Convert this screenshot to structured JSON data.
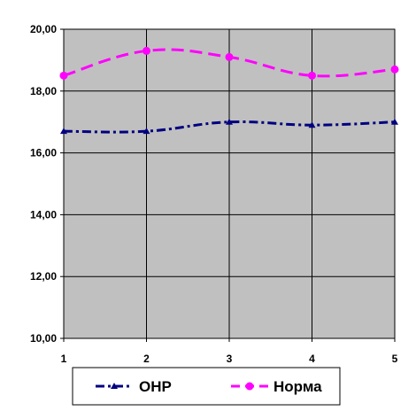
{
  "chart_data": {
    "type": "line",
    "x": [
      1,
      2,
      3,
      4,
      5
    ],
    "x_tick_labels": [
      "1",
      "2",
      "3",
      "4",
      "5"
    ],
    "ylim": [
      10,
      20
    ],
    "y_tick_values": [
      10,
      12,
      14,
      16,
      18,
      20
    ],
    "y_tick_labels": [
      "10,00",
      "12,00",
      "14,00",
      "16,00",
      "18,00",
      "20,00"
    ],
    "grid": true,
    "plot_background": "#c0c0c0",
    "legend_position": "bottom",
    "series": [
      {
        "name": "ОНР",
        "values": [
          16.7,
          16.7,
          17.0,
          16.9,
          17.0
        ],
        "color": "#000080",
        "marker": "triangle",
        "line_style": "dash-dot"
      },
      {
        "name": "Норма",
        "values": [
          18.5,
          19.3,
          19.1,
          18.5,
          18.7
        ],
        "color": "#ff00ff",
        "marker": "circle",
        "line_style": "dashed"
      }
    ]
  }
}
